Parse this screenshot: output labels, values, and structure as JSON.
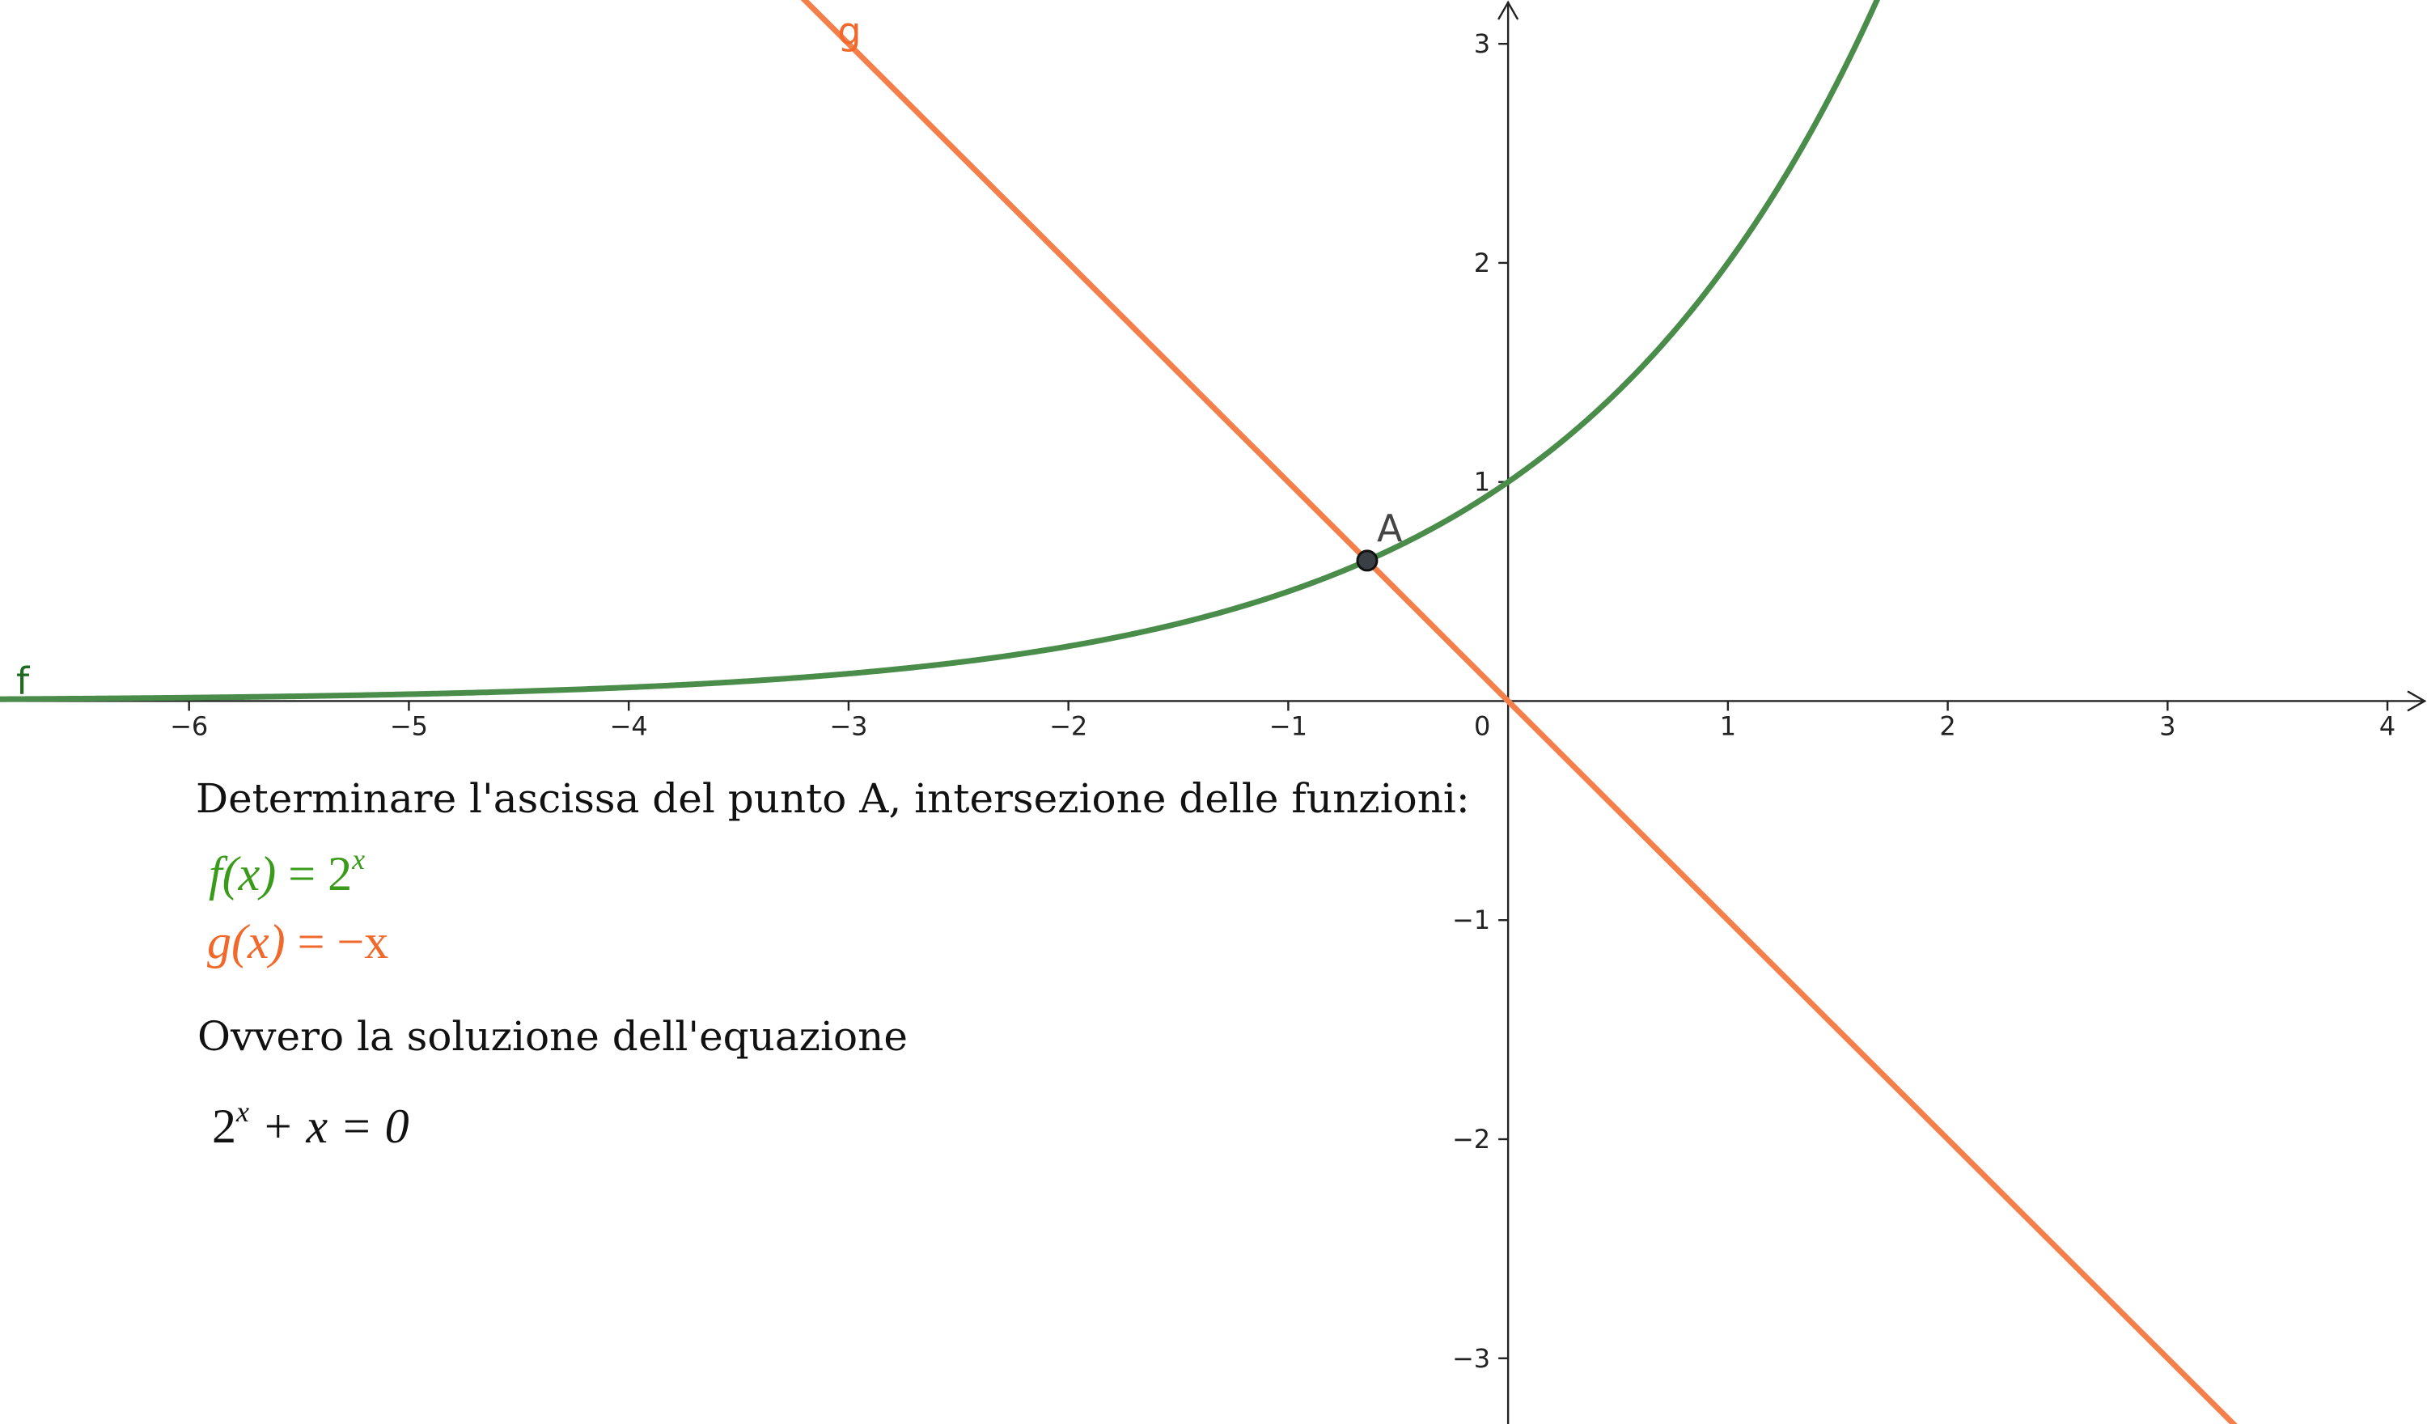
{
  "chart_data": {
    "type": "line",
    "title": "",
    "xlim": [
      -6.86,
      4.18
    ],
    "ylim": [
      -3.3,
      3.2
    ],
    "x_ticks": [
      -6,
      -5,
      -4,
      -3,
      -2,
      -1,
      0,
      1,
      2,
      3,
      4
    ],
    "y_ticks": [
      -3,
      -2,
      -1,
      1,
      2,
      3
    ],
    "grid": false,
    "series": [
      {
        "name": "f",
        "expression": "2^x",
        "color": "#4a8c4a"
      },
      {
        "name": "g",
        "expression": "-x",
        "color": "#f57f4a"
      }
    ],
    "points": [
      {
        "name": "A",
        "x": -0.641,
        "y": 0.641
      }
    ]
  },
  "text": {
    "line1": "Determinare l'ascissa del punto A, intersezione delle funzioni:",
    "f_formula": {
      "lhs": "f(x)",
      "eq": " = 2",
      "sup": "x"
    },
    "g_formula": {
      "lhs": "g(x)",
      "eq": " = −x"
    },
    "line2": "Ovvero la soluzione dell'equazione",
    "equation": {
      "base": "2",
      "sup": "x",
      "rest": " + x = 0"
    }
  }
}
